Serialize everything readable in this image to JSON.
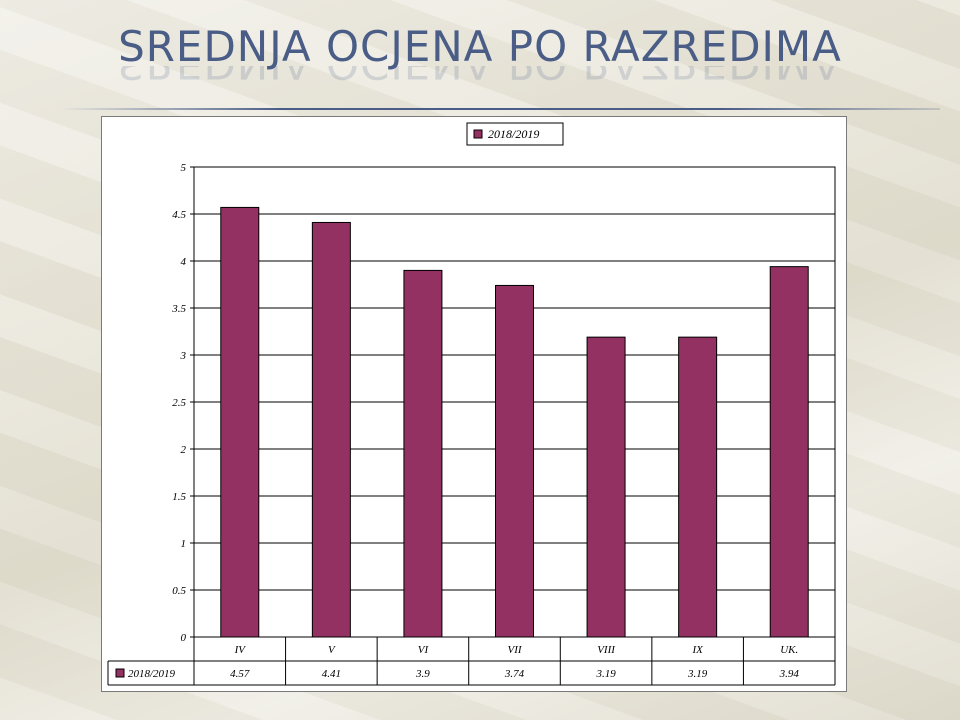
{
  "slide": {
    "title": "SREDNJA OCJENA PO RAZREDIMA"
  },
  "colors": {
    "bar": "#933262",
    "title": "#4a5d86"
  },
  "chart_data": {
    "type": "bar",
    "title": "",
    "xlabel": "",
    "ylabel": "",
    "categories": [
      "IV",
      "V",
      "VI",
      "VII",
      "VIII",
      "IX",
      "UK."
    ],
    "series": [
      {
        "name": "2018/2019",
        "values": [
          4.57,
          4.41,
          3.9,
          3.74,
          3.19,
          3.19,
          3.94
        ]
      }
    ],
    "value_labels": [
      "4.57",
      "4.41",
      "3.9",
      "3.74",
      "3.19",
      "3.19",
      "3.94"
    ],
    "ylim": [
      0,
      5
    ],
    "yticks": [
      "0",
      "0.5",
      "1",
      "1.5",
      "2",
      "2.5",
      "3",
      "3.5",
      "4",
      "4.5",
      "5"
    ],
    "grid": true,
    "legend": "top-center",
    "data_table": true
  }
}
